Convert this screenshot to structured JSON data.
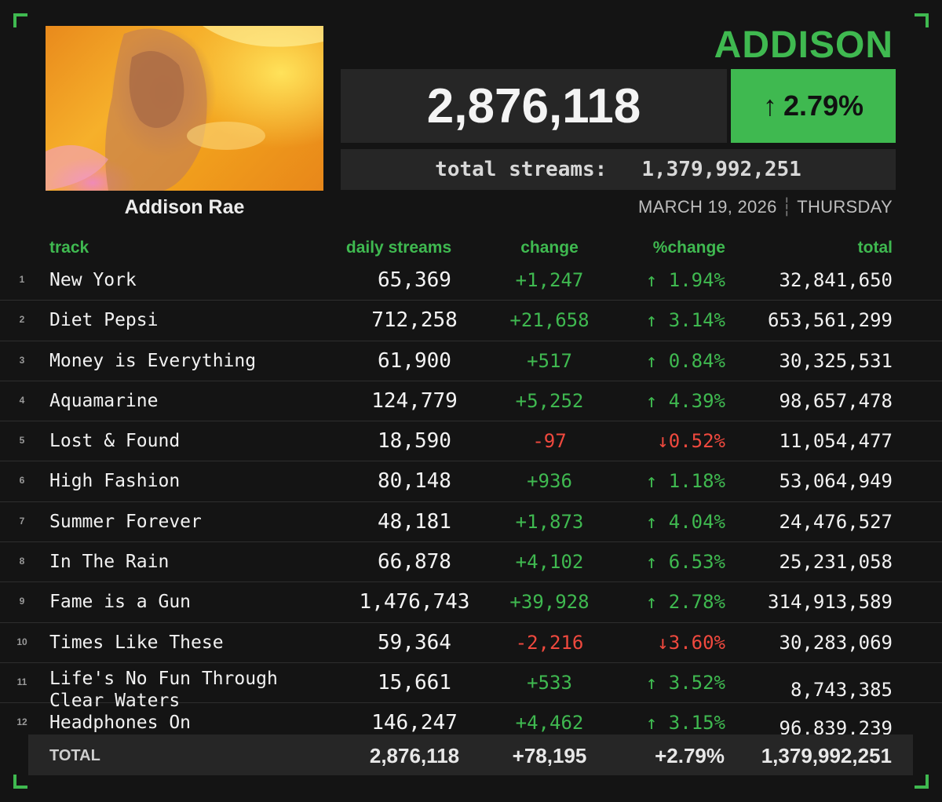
{
  "artist": {
    "display_title": "ADDISON",
    "name": "Addison Rae"
  },
  "summary": {
    "daily_streams": "2,876,118",
    "percent_change": "2.79%",
    "percent_arrow": "↑",
    "total_label": "total streams:",
    "total_streams": "1,379,992,251",
    "date": "MARCH 19, 2026",
    "date_separator": "┆",
    "weekday": "THURSDAY"
  },
  "colors": {
    "accent": "#3fb950",
    "negative": "#f0493e",
    "background": "#141414",
    "panel": "#262626"
  },
  "table": {
    "headers": {
      "track": "track",
      "daily": "daily streams",
      "change": "change",
      "pct_change": "%change",
      "total": "total"
    },
    "rows": [
      {
        "num": "1",
        "track": "New York",
        "daily": "65,369",
        "change": "+1,247",
        "pct": "↑ 1.94%",
        "total": "32,841,650",
        "dir": "up"
      },
      {
        "num": "2",
        "track": "Diet Pepsi",
        "daily": "712,258",
        "change": "+21,658",
        "pct": "↑ 3.14%",
        "total": "653,561,299",
        "dir": "up"
      },
      {
        "num": "3",
        "track": "Money is Everything",
        "daily": "61,900",
        "change": "+517",
        "pct": "↑ 0.84%",
        "total": "30,325,531",
        "dir": "up"
      },
      {
        "num": "4",
        "track": "Aquamarine",
        "daily": "124,779",
        "change": "+5,252",
        "pct": "↑ 4.39%",
        "total": "98,657,478",
        "dir": "up"
      },
      {
        "num": "5",
        "track": "Lost & Found",
        "daily": "18,590",
        "change": "-97",
        "pct": "↓0.52%",
        "total": "11,054,477",
        "dir": "down"
      },
      {
        "num": "6",
        "track": "High Fashion",
        "daily": "80,148",
        "change": "+936",
        "pct": "↑ 1.18%",
        "total": "53,064,949",
        "dir": "up"
      },
      {
        "num": "7",
        "track": "Summer Forever",
        "daily": "48,181",
        "change": "+1,873",
        "pct": "↑ 4.04%",
        "total": "24,476,527",
        "dir": "up"
      },
      {
        "num": "8",
        "track": "In The Rain",
        "daily": "66,878",
        "change": "+4,102",
        "pct": "↑ 6.53%",
        "total": "25,231,058",
        "dir": "up"
      },
      {
        "num": "9",
        "track": "Fame is a Gun",
        "daily": "1,476,743",
        "change": "+39,928",
        "pct": "↑ 2.78%",
        "total": "314,913,589",
        "dir": "up"
      },
      {
        "num": "10",
        "track": "Times Like These",
        "daily": "59,364",
        "change": "-2,216",
        "pct": "↓3.60%",
        "total": "30,283,069",
        "dir": "down"
      },
      {
        "num": "11",
        "track": "Life's No Fun Through Clear Waters",
        "daily": "15,661",
        "change": "+533",
        "pct": "↑ 3.52%",
        "total": "8,743,385",
        "dir": "up"
      },
      {
        "num": "12",
        "track": "Headphones On",
        "daily": "146,247",
        "change": "+4,462",
        "pct": "↑ 3.15%",
        "total": "96,839,239",
        "dir": "up"
      }
    ],
    "totals": {
      "label": "TOTAL",
      "daily": "2,876,118",
      "change": "+78,195",
      "pct": "+2.79%",
      "total": "1,379,992,251"
    }
  }
}
